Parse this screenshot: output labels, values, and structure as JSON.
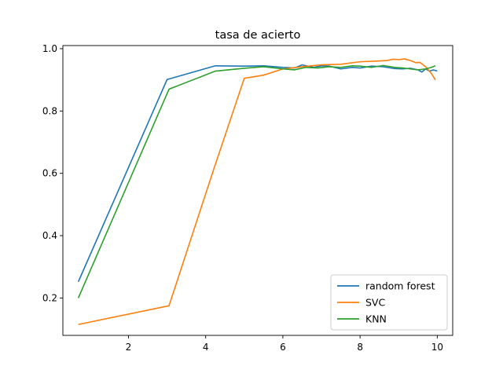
{
  "chart_data": {
    "type": "line",
    "title": "tasa de acierto",
    "xlabel": "",
    "ylabel": "",
    "xlim": [
      0.3,
      10.4
    ],
    "ylim": [
      0.08,
      1.01
    ],
    "xticks": [
      2,
      4,
      6,
      8,
      10
    ],
    "yticks": [
      0.2,
      0.4,
      0.6,
      0.8,
      1.0
    ],
    "xtick_labels": [
      "2",
      "4",
      "6",
      "8",
      "10"
    ],
    "ytick_labels": [
      "0.2",
      "0.4",
      "0.6",
      "0.8",
      "1.0"
    ],
    "grid": false,
    "legend_position": "lower-right",
    "series": [
      {
        "name": "random forest",
        "color": "#1f77b4",
        "x": [
          0.7,
          3.0,
          4.25,
          5.0,
          5.5,
          6.0,
          6.3,
          6.5,
          6.8,
          7.0,
          7.2,
          7.5,
          7.8,
          8.0,
          8.3,
          8.6,
          8.9,
          9.1,
          9.3,
          9.5,
          9.6,
          9.7,
          9.8,
          9.9,
          10.0
        ],
        "y": [
          0.252,
          0.901,
          0.945,
          0.944,
          0.945,
          0.94,
          0.938,
          0.948,
          0.94,
          0.945,
          0.944,
          0.935,
          0.94,
          0.938,
          0.944,
          0.942,
          0.936,
          0.935,
          0.937,
          0.932,
          0.925,
          0.935,
          0.928,
          0.932,
          0.928
        ]
      },
      {
        "name": "SVC",
        "color": "#ff7f0e",
        "x": [
          0.7,
          3.05,
          4.2,
          5.0,
          5.5,
          6.0,
          6.5,
          7.0,
          7.5,
          8.0,
          8.4,
          8.7,
          8.85,
          9.0,
          9.15,
          9.3,
          9.45,
          9.55,
          9.7,
          9.85,
          9.95
        ],
        "y": [
          0.115,
          0.175,
          0.61,
          0.905,
          0.915,
          0.935,
          0.942,
          0.948,
          0.95,
          0.958,
          0.96,
          0.962,
          0.966,
          0.965,
          0.967,
          0.962,
          0.955,
          0.956,
          0.942,
          0.92,
          0.9
        ]
      },
      {
        "name": "KNN",
        "color": "#2ca02c",
        "x": [
          0.7,
          3.05,
          4.25,
          5.0,
          5.5,
          6.0,
          6.3,
          6.6,
          6.9,
          7.2,
          7.5,
          7.8,
          8.0,
          8.3,
          8.6,
          8.9,
          9.1,
          9.3,
          9.5,
          9.7,
          9.85,
          9.95
        ],
        "y": [
          0.2,
          0.87,
          0.928,
          0.937,
          0.942,
          0.935,
          0.932,
          0.94,
          0.938,
          0.942,
          0.94,
          0.945,
          0.944,
          0.94,
          0.946,
          0.94,
          0.938,
          0.935,
          0.932,
          0.935,
          0.94,
          0.945
        ]
      }
    ]
  }
}
